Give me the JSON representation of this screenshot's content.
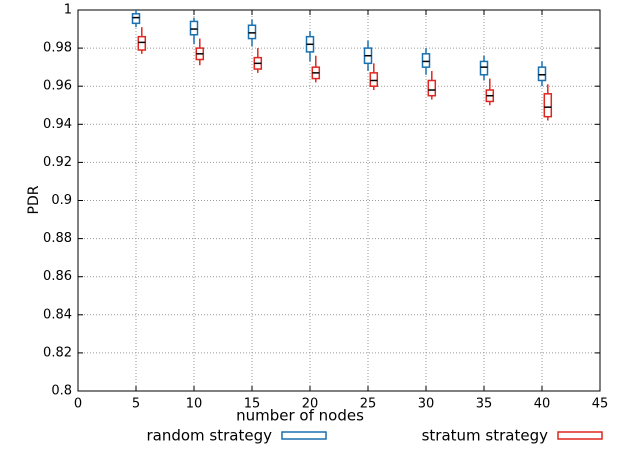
{
  "chart_data": {
    "type": "box",
    "xlabel": "number of nodes",
    "ylabel": "PDR",
    "xlim": [
      0,
      45
    ],
    "xticks": [
      0,
      5,
      10,
      15,
      20,
      25,
      30,
      35,
      40,
      45
    ],
    "ylim": [
      0.8,
      1
    ],
    "yticks": [
      0.8,
      0.82,
      0.84,
      0.86,
      0.88,
      0.9,
      0.92,
      0.94,
      0.96,
      0.98,
      1
    ],
    "grid": true,
    "legend": "bottom",
    "series": [
      {
        "name": "random strategy",
        "color": "#1a6fae",
        "x": [
          5,
          10,
          15,
          20,
          25,
          30,
          35,
          40
        ],
        "min": [
          0.991,
          0.982,
          0.981,
          0.973,
          0.968,
          0.966,
          0.963,
          0.96
        ],
        "q1": [
          0.993,
          0.987,
          0.985,
          0.978,
          0.972,
          0.97,
          0.966,
          0.963
        ],
        "median": [
          0.996,
          0.99,
          0.988,
          0.982,
          0.976,
          0.973,
          0.97,
          0.966
        ],
        "q3": [
          0.998,
          0.994,
          0.992,
          0.986,
          0.98,
          0.977,
          0.973,
          0.97
        ],
        "max": [
          1,
          0.996,
          0.995,
          0.989,
          0.984,
          0.98,
          0.976,
          0.973
        ]
      },
      {
        "name": "stratum strategy",
        "color": "#e0261f",
        "x": [
          5.5,
          10.5,
          15.5,
          20.5,
          25.5,
          30.5,
          35.5,
          40.5
        ],
        "min": [
          0.977,
          0.971,
          0.967,
          0.962,
          0.958,
          0.953,
          0.95,
          0.942
        ],
        "q1": [
          0.979,
          0.974,
          0.969,
          0.964,
          0.96,
          0.955,
          0.952,
          0.944
        ],
        "median": [
          0.983,
          0.977,
          0.972,
          0.967,
          0.963,
          0.958,
          0.955,
          0.949
        ],
        "q3": [
          0.986,
          0.98,
          0.975,
          0.97,
          0.967,
          0.963,
          0.958,
          0.956
        ],
        "max": [
          0.991,
          0.985,
          0.98,
          0.976,
          0.972,
          0.968,
          0.964,
          0.961
        ]
      }
    ]
  }
}
